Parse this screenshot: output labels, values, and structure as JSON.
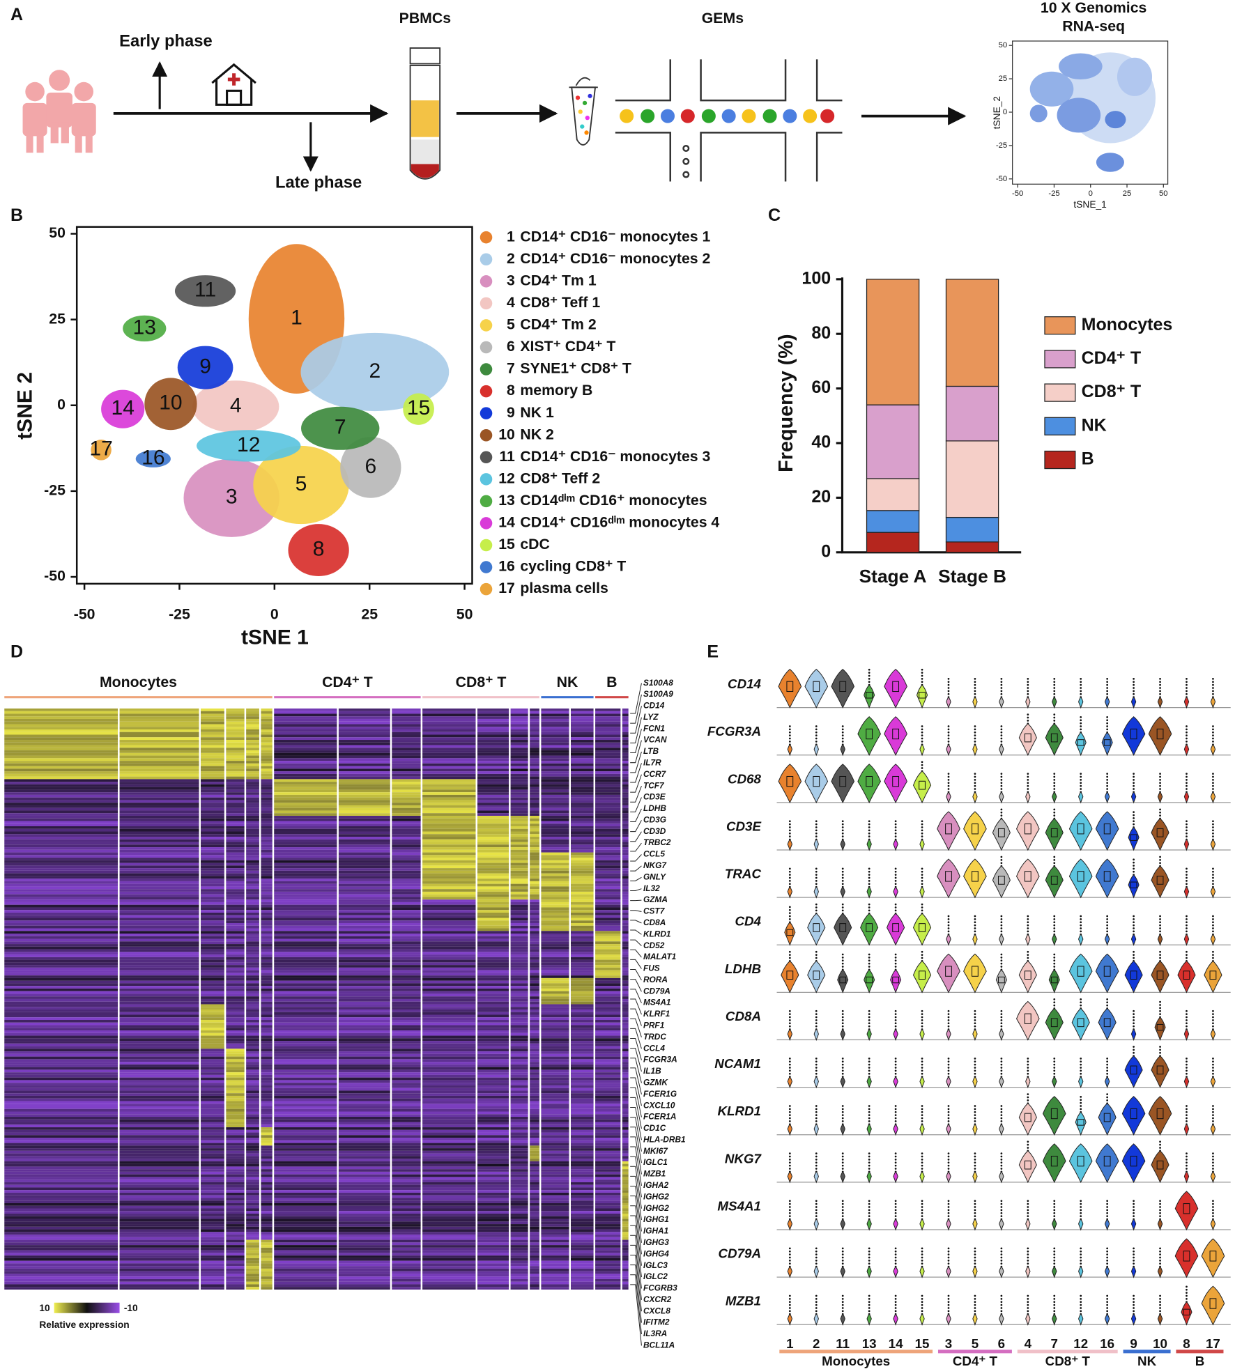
{
  "figure": {
    "panel_labels": [
      "A",
      "B",
      "C",
      "D",
      "E"
    ]
  },
  "panel_a": {
    "early": "Early phase",
    "late": "Late phase",
    "pbmcs": "PBMCs",
    "gems": "GEMs",
    "title": [
      "10 X Genomics",
      "RNA-seq"
    ],
    "mini_xlabel": "tSNE_1",
    "mini_ylabel": "tSNE_2",
    "mini_xticks": [
      -50,
      -25,
      0,
      25,
      50
    ],
    "mini_yticks": [
      -50,
      -25,
      0,
      25,
      50
    ]
  },
  "chart_data": [
    {
      "type": "scatter",
      "xlabel": "tSNE 1",
      "ylabel": "tSNE 2",
      "xlim": [
        -52,
        52
      ],
      "ylim": [
        -52,
        52
      ],
      "xticks": [
        -50,
        -25,
        0,
        25,
        50
      ],
      "yticks": [
        -50,
        -25,
        0,
        25,
        50
      ],
      "clusters": [
        {
          "id": "1",
          "name": "CD14⁺ CD16⁻ monocytes 1",
          "color": "#e8822e",
          "x": 5.8,
          "y": 25.2,
          "rx": 12.6,
          "ry": 21.8
        },
        {
          "id": "2",
          "name": "CD14⁺ CD16⁻ monocytes 2",
          "color": "#a9cce8",
          "x": 26.4,
          "y": 9.7,
          "rx": 19.5,
          "ry": 11.4
        },
        {
          "id": "3",
          "name": "CD4⁺ Tm 1",
          "color": "#d88fbf",
          "x": -11.3,
          "y": -27,
          "rx": 12.6,
          "ry": 11.4
        },
        {
          "id": "4",
          "name": "CD8⁺ Teff 1",
          "color": "#f2c6c2",
          "x": -10.2,
          "y": -0.4,
          "rx": 11.4,
          "ry": 7.6
        },
        {
          "id": "5",
          "name": "CD4⁺ Tm 2",
          "color": "#f6d24a",
          "x": 7,
          "y": -23.2,
          "rx": 12.6,
          "ry": 11.4
        },
        {
          "id": "6",
          "name": "XIST⁺ CD4⁺ T",
          "color": "#b9b9b9",
          "x": 25.3,
          "y": -18.1,
          "rx": 8,
          "ry": 8.9
        },
        {
          "id": "7",
          "name": "SYNE1⁺ CD8⁺ T",
          "color": "#3e8a3e",
          "x": 17.3,
          "y": -6.7,
          "rx": 10.3,
          "ry": 6.3
        },
        {
          "id": "8",
          "name": "memory B",
          "color": "#d8302c",
          "x": 11.6,
          "y": -42.2,
          "rx": 8,
          "ry": 7.6
        },
        {
          "id": "9",
          "name": "NK 1",
          "color": "#1239d9",
          "x": -18.2,
          "y": 11,
          "rx": 7.3,
          "ry": 6.3
        },
        {
          "id": "10",
          "name": "NK 2",
          "color": "#9a5524",
          "x": -27.3,
          "y": 0.4,
          "rx": 6.9,
          "ry": 7.6
        },
        {
          "id": "11",
          "name": "CD14⁺ CD16⁻ monocytes 3",
          "color": "#555555",
          "x": -18.2,
          "y": 33.3,
          "rx": 8,
          "ry": 4.6
        },
        {
          "id": "12",
          "name": "CD8⁺ Teff 2",
          "color": "#5bc4df",
          "x": -6.8,
          "y": -11.8,
          "rx": 13.7,
          "ry": 4.6
        },
        {
          "id": "13",
          "name": "CD14ᵈⁱᵐ CD16⁺ monocytes",
          "color": "#4fac43",
          "x": -34.2,
          "y": 22.4,
          "rx": 5.7,
          "ry": 3.8
        },
        {
          "id": "14",
          "name": "CD14⁺ CD16ᵈⁱᵐ monocytes 4",
          "color": "#d93ad8",
          "x": -39.9,
          "y": -1.1,
          "rx": 5.7,
          "ry": 5.6
        },
        {
          "id": "15",
          "name": "cDC",
          "color": "#c6ee4a",
          "x": 37.9,
          "y": -1.1,
          "rx": 4.1,
          "ry": 4.6
        },
        {
          "id": "16",
          "name": "cycling CD8⁺ T",
          "color": "#4079d0",
          "x": -31.9,
          "y": -15.6,
          "rx": 4.6,
          "ry": 2.5
        },
        {
          "id": "17",
          "name": "plasma cells",
          "color": "#eba43a",
          "x": -45.6,
          "y": -13,
          "rx": 2.7,
          "ry": 3
        }
      ]
    },
    {
      "type": "bar",
      "stacked": true,
      "ylabel": "Frequency (%)",
      "categories": [
        "Stage A",
        "Stage B"
      ],
      "ylim": [
        0,
        100
      ],
      "yticks": [
        0,
        20,
        40,
        60,
        80,
        100
      ],
      "legend": "right",
      "series": [
        {
          "name": "B",
          "color": "#b5261e",
          "values": [
            7.3,
            3.8
          ]
        },
        {
          "name": "NK",
          "color": "#4d8fe0",
          "values": [
            8,
            9
          ]
        },
        {
          "name": "CD8⁺ T",
          "color": "#f5cfc8",
          "values": [
            11.7,
            28
          ]
        },
        {
          "name": "CD4⁺ T",
          "color": "#d9a0cc",
          "values": [
            27,
            20
          ]
        },
        {
          "name": "Monocytes",
          "color": "#e8955a",
          "values": [
            46,
            39.2
          ]
        }
      ]
    }
  ],
  "cell_groups": [
    {
      "name": "Monocytes",
      "color": "#eea47a"
    },
    {
      "name": "CD4⁺ T",
      "color": "#d46ec0"
    },
    {
      "name": "CD8⁺ T",
      "color": "#f0c0c8"
    },
    {
      "name": "NK",
      "color": "#3a6fd0"
    },
    {
      "name": "B",
      "color": "#d04848"
    }
  ],
  "heatmap": {
    "genes": [
      "S100A8",
      "S100A9",
      "CD14",
      "LYZ",
      "FCN1",
      "VCAN",
      "LTB",
      "IL7R",
      "CCR7",
      "TCF7",
      "CD3E",
      "LDHB",
      "CD3G",
      "CD3D",
      "TRBC2",
      "CCL5",
      "NKG7",
      "GNLY",
      "IL32",
      "GZMA",
      "CST7",
      "CD8A",
      "KLRD1",
      "CD52",
      "MALAT1",
      "FUS",
      "RORA",
      "CD79A",
      "MS4A1",
      "KLRF1",
      "PRF1",
      "TRDC",
      "CCL4",
      "FCGR3A",
      "IL1B",
      "GZMK",
      "FCER1G",
      "CXCL10",
      "FCER1A",
      "CD1C",
      "HLA-DRB1",
      "MKI67",
      "IGLC1",
      "MZB1",
      "IGHA2",
      "IGHG2",
      "IGHG2",
      "IGHG1",
      "IGHA1",
      "IGHG3",
      "IGHG4",
      "IGLC3",
      "IGLC2",
      "FCGRB3",
      "CXCR2",
      "CXCL8",
      "IFITM2",
      "IL3RA",
      "BCL11A"
    ],
    "scale": {
      "max": 10,
      "min": -10,
      "label": "Relative expression"
    }
  },
  "violin": {
    "genes": [
      "CD14",
      "FCGR3A",
      "CD68",
      "CD3E",
      "TRAC",
      "CD4",
      "LDHB",
      "CD8A",
      "NCAM1",
      "KLRD1",
      "NKG7",
      "MS4A1",
      "CD79A",
      "MZB1"
    ],
    "clusters": [
      "1",
      "2",
      "11",
      "13",
      "14",
      "15",
      "3",
      "5",
      "6",
      "4",
      "7",
      "12",
      "16",
      "9",
      "10",
      "8",
      "17"
    ],
    "levels": [
      [
        3,
        3,
        3,
        1,
        3,
        1,
        0,
        0,
        0,
        0,
        0,
        0,
        0,
        0,
        0,
        0,
        0
      ],
      [
        0,
        0,
        0,
        3,
        3,
        0,
        0,
        0,
        0,
        2,
        2,
        1,
        1,
        3,
        3,
        0,
        0
      ],
      [
        3,
        3,
        3,
        3,
        3,
        2,
        0,
        0,
        0,
        0,
        0,
        0,
        0,
        0,
        0,
        0,
        0
      ],
      [
        0,
        0,
        0,
        0,
        0,
        0,
        3,
        3,
        2,
        3,
        2,
        3,
        3,
        1,
        2,
        0,
        0
      ],
      [
        0,
        0,
        0,
        0,
        0,
        0,
        3,
        3,
        2,
        3,
        2,
        3,
        3,
        1,
        2,
        0,
        0
      ],
      [
        1,
        2,
        2,
        2,
        2,
        2,
        0,
        0,
        0,
        0,
        0,
        0,
        0,
        0,
        0,
        0,
        0
      ],
      [
        2,
        2,
        1,
        1,
        1,
        2,
        3,
        3,
        1,
        2,
        1,
        3,
        3,
        2,
        2,
        2,
        2
      ],
      [
        0,
        0,
        0,
        0,
        0,
        0,
        0,
        0,
        0,
        3,
        2,
        2,
        2,
        0,
        1,
        0,
        0
      ],
      [
        0,
        0,
        0,
        0,
        0,
        0,
        0,
        0,
        0,
        0,
        0,
        0,
        0,
        2,
        2,
        0,
        0
      ],
      [
        0,
        0,
        0,
        0,
        0,
        0,
        0,
        0,
        0,
        2,
        3,
        1,
        2,
        3,
        3,
        0,
        0
      ],
      [
        0,
        0,
        0,
        0,
        0,
        0,
        0,
        0,
        0,
        2,
        3,
        3,
        3,
        3,
        2,
        0,
        0
      ],
      [
        0,
        0,
        0,
        0,
        0,
        0,
        0,
        0,
        0,
        0,
        0,
        0,
        0,
        0,
        0,
        3,
        0
      ],
      [
        0,
        0,
        0,
        0,
        0,
        0,
        0,
        0,
        0,
        0,
        0,
        0,
        0,
        0,
        0,
        3,
        3
      ],
      [
        0,
        0,
        0,
        0,
        0,
        0,
        0,
        0,
        0,
        0,
        0,
        0,
        0,
        0,
        0,
        1,
        3
      ]
    ]
  }
}
